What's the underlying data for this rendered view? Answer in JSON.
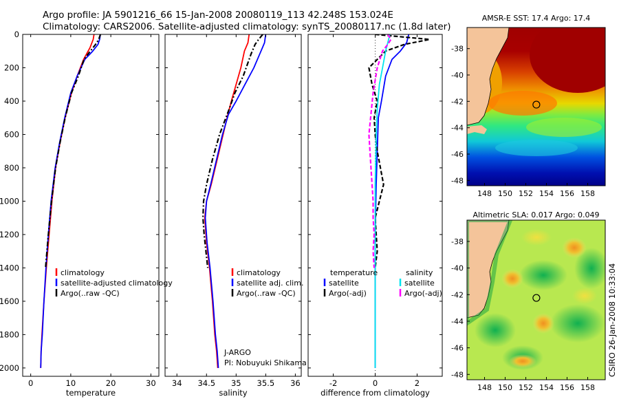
{
  "header": {
    "line1": "Argo profile: JA 5901216_66 15-Jan-2008 20080119_113 42.248S 153.024E",
    "line2": "Climatology: CARS2006. Satellite-adjusted climatology: synTS_20080117.nc (1.8d later)"
  },
  "footer_stamp": "CSIRO 26-Jan-2008 10:33:04",
  "colors": {
    "red": "#ff0000",
    "blue": "#0000ff",
    "black": "#000000",
    "cyan": "#00e5ee",
    "magenta": "#ff00ff"
  },
  "chart_data": [
    {
      "type": "line",
      "panel": "temperature",
      "xlabel": "temperature",
      "xlim": [
        -2,
        32
      ],
      "ylim": [
        2050,
        0
      ],
      "xticks": [
        0,
        10,
        20,
        30
      ],
      "yticks": [
        0,
        200,
        400,
        600,
        800,
        1000,
        1200,
        1400,
        1600,
        1800,
        2000
      ],
      "legend": {
        "position": "lower-right",
        "items": [
          "climatology",
          "satellite-adjusted climatology",
          "Argo(..raw -QC)"
        ]
      },
      "series": [
        {
          "name": "climatology",
          "color": "red",
          "dash": "solid",
          "x": [
            15.8,
            15.6,
            14.8,
            13.2,
            11.6,
            10.2,
            8.6,
            7.3,
            6.2,
            5.3,
            4.6,
            3.9,
            3.3,
            2.8,
            2.6,
            2.5
          ],
          "y": [
            0,
            30,
            80,
            150,
            250,
            350,
            500,
            650,
            800,
            1000,
            1200,
            1400,
            1600,
            1800,
            1900,
            2000
          ]
        },
        {
          "name": "satellite-adjusted climatology",
          "color": "blue",
          "dash": "solid",
          "x": [
            17.4,
            17.2,
            16.8,
            15.5,
            13.5,
            11.6,
            10.0,
            8.5,
            7.2,
            6.1,
            5.1,
            4.4,
            3.8,
            3.3,
            2.9,
            2.6,
            2.5
          ],
          "y": [
            0,
            30,
            60,
            100,
            150,
            250,
            350,
            500,
            650,
            800,
            1000,
            1200,
            1400,
            1600,
            1800,
            1900,
            2000
          ]
        },
        {
          "name": "Argo(..raw -QC)",
          "color": "black",
          "dash": "dashdot",
          "x": [
            17.4,
            17.0,
            16.2,
            14.9,
            13.3,
            11.9,
            10.2,
            8.6,
            7.3,
            6.2,
            5.2,
            4.4,
            3.7
          ],
          "y": [
            0,
            30,
            60,
            100,
            150,
            250,
            350,
            500,
            650,
            800,
            1000,
            1200,
            1400
          ]
        }
      ]
    },
    {
      "type": "line",
      "panel": "salinity",
      "xlabel": "salinity",
      "xlim": [
        33.8,
        36.1
      ],
      "ylim": [
        2050,
        0
      ],
      "xticks": [
        34,
        34.5,
        35,
        35.5,
        36
      ],
      "legend": {
        "position": "lower-right",
        "items": [
          "climatology",
          "satellite adj. clim.",
          "Argo(..raw -QC)"
        ]
      },
      "annotation": [
        "J-ARGO",
        "PI: Nobuyuki Shikama"
      ],
      "series": [
        {
          "name": "climatology",
          "color": "red",
          "dash": "solid",
          "x": [
            35.22,
            35.2,
            35.14,
            35.08,
            35.0,
            34.92,
            34.86,
            34.78,
            34.68,
            34.58,
            34.5,
            34.47,
            34.5,
            34.55,
            34.6,
            34.64,
            34.67,
            34.69
          ],
          "y": [
            0,
            50,
            100,
            200,
            300,
            400,
            480,
            600,
            750,
            900,
            1000,
            1100,
            1250,
            1400,
            1600,
            1800,
            1900,
            2000
          ]
        },
        {
          "name": "satellite adj. clim.",
          "color": "blue",
          "dash": "solid",
          "x": [
            35.5,
            35.48,
            35.42,
            35.3,
            35.15,
            35.0,
            34.87,
            34.77,
            34.67,
            34.57,
            34.5,
            34.48,
            34.51,
            34.56,
            34.61,
            34.65,
            34.68,
            34.7
          ],
          "y": [
            0,
            50,
            100,
            200,
            300,
            400,
            480,
            600,
            750,
            900,
            1000,
            1100,
            1250,
            1400,
            1600,
            1800,
            1900,
            2000
          ]
        },
        {
          "name": "Argo(..raw -QC)",
          "color": "black",
          "dash": "dashdot",
          "x": [
            35.45,
            35.38,
            35.32,
            35.25,
            35.12,
            34.98,
            34.88,
            34.72,
            34.6,
            34.5,
            34.45,
            34.44,
            34.46,
            34.52
          ],
          "y": [
            0,
            30,
            60,
            120,
            250,
            350,
            450,
            600,
            750,
            900,
            1000,
            1100,
            1200,
            1400
          ]
        }
      ]
    },
    {
      "type": "line",
      "panel": "difference",
      "xlabel": "difference from climatology",
      "xlim": [
        -3.2,
        3.2
      ],
      "ylim": [
        2050,
        0
      ],
      "xticks": [
        -2,
        0,
        2
      ],
      "legend": {
        "position": "lower-left",
        "items": [
          "temperature",
          "satellite",
          "Argo(-adj)",
          "salinity",
          "satellite",
          "Argo(-adj)"
        ]
      },
      "series": [
        {
          "name": "temperature satellite",
          "color": "blue",
          "dash": "solid",
          "x": [
            1.6,
            1.5,
            1.2,
            0.8,
            0.5,
            0.3,
            0.15,
            0.1,
            0.05,
            0.0,
            0.0,
            0.0
          ],
          "y": [
            0,
            50,
            100,
            150,
            250,
            400,
            500,
            700,
            900,
            1200,
            1600,
            2000
          ]
        },
        {
          "name": "temperature Argo(-adj)",
          "color": "black",
          "dash": "dashed",
          "x": [
            0.0,
            2.6,
            1.4,
            0.5,
            -0.3,
            -0.15,
            0.1,
            -0.05,
            0.0,
            0.1,
            0.25,
            0.4,
            0.2,
            0.0,
            0.1,
            0.0
          ],
          "y": [
            0,
            30,
            60,
            100,
            200,
            300,
            400,
            500,
            600,
            700,
            800,
            900,
            1000,
            1100,
            1300,
            1400
          ]
        },
        {
          "name": "salinity satellite",
          "color": "cyan",
          "dash": "solid",
          "x": [
            0.7,
            0.6,
            0.5,
            0.35,
            0.2,
            0.1,
            0.05,
            0.0,
            0.0,
            0.0
          ],
          "y": [
            0,
            50,
            100,
            200,
            300,
            450,
            600,
            900,
            1400,
            2000
          ]
        },
        {
          "name": "salinity Argo(-adj)",
          "color": "magenta",
          "dash": "dashed",
          "x": [
            0.6,
            0.75,
            0.6,
            0.35,
            0.1,
            -0.1,
            -0.3,
            -0.2,
            -0.1,
            -0.1,
            -0.05,
            -0.1,
            -0.05
          ],
          "y": [
            0,
            30,
            60,
            100,
            200,
            350,
            600,
            800,
            1000,
            1100,
            1200,
            1300,
            1400
          ]
        }
      ]
    },
    {
      "type": "heatmap",
      "panel": "sst-map",
      "title": "AMSR-E SST: 17.4  Argo: 17.4",
      "xticks": [
        148,
        150,
        152,
        154,
        156,
        158
      ],
      "yticks": [
        -38,
        -40,
        -42,
        -44,
        -46,
        -48
      ],
      "xlim": [
        146.3,
        159.7
      ],
      "ylim": [
        -48.4,
        -36.4
      ],
      "marker": {
        "lon": 153.024,
        "lat": -42.248
      }
    },
    {
      "type": "heatmap",
      "panel": "sla-map",
      "title": "Altimetric SLA: 0.017  Argo: 0.049",
      "xticks": [
        148,
        150,
        152,
        154,
        156,
        158
      ],
      "yticks": [
        -38,
        -40,
        -42,
        -44,
        -46,
        -48
      ],
      "xlim": [
        146.3,
        159.7
      ],
      "ylim": [
        -48.4,
        -36.4
      ],
      "marker": {
        "lon": 153.024,
        "lat": -42.248
      }
    }
  ]
}
